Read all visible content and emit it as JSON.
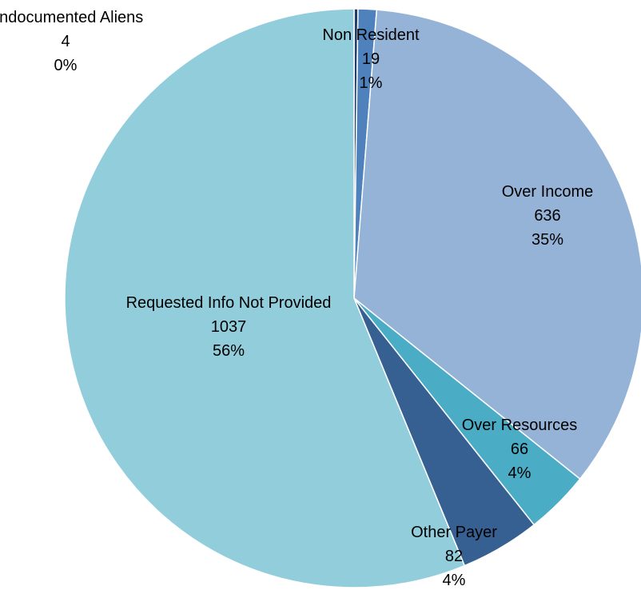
{
  "chart_data": {
    "type": "pie",
    "title": "",
    "slices": [
      {
        "name": "Undocumented Aliens",
        "value": 4,
        "percent": "0%",
        "color": "#1F3E66"
      },
      {
        "name": "Non Resident",
        "value": 19,
        "percent": "1%",
        "color": "#4F81BD"
      },
      {
        "name": "Over Income",
        "value": 636,
        "percent": "35%",
        "color": "#95B3D7"
      },
      {
        "name": "Over Resources",
        "value": 66,
        "percent": "4%",
        "color": "#4BACC6"
      },
      {
        "name": "Other Payer",
        "value": 82,
        "percent": "4%",
        "color": "#376092"
      },
      {
        "name": "Requested Info Not Provided",
        "value": 1037,
        "percent": "56%",
        "color": "#92CDDC"
      }
    ]
  }
}
